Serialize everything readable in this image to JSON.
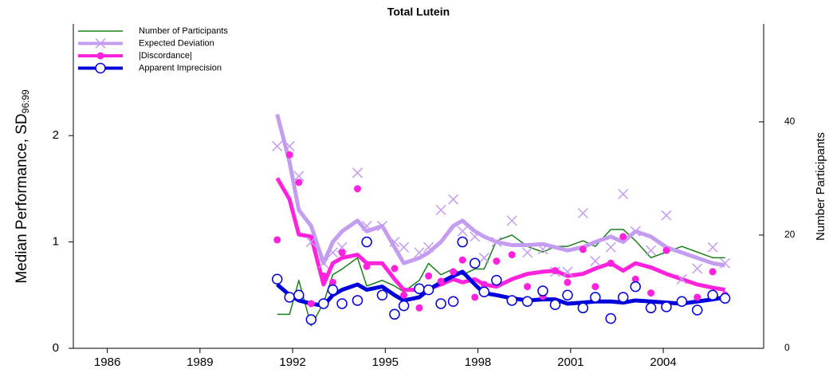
{
  "chart_data": {
    "type": "line",
    "title": "Total Lutein",
    "ylabel": "Median Performance, SD",
    "ylabel_sub": "96:99",
    "y2label": "Number Participants",
    "xlim": [
      1984.9,
      2007.25
    ],
    "xticks": [
      1986,
      1989,
      1992,
      1995,
      1998,
      2001,
      2004
    ],
    "ylim": [
      0,
      3.05
    ],
    "yticks": [
      0,
      1,
      2
    ],
    "y2lim": [
      0,
      57.3
    ],
    "y2ticks": [
      0,
      20,
      40
    ],
    "legend": "upper left",
    "x": [
      1991.5,
      1991.9,
      1992.2,
      1992.6,
      1993.0,
      1993.3,
      1993.6,
      1994.1,
      1994.4,
      1994.9,
      1995.3,
      1995.6,
      1996.1,
      1996.4,
      1996.8,
      1997.2,
      1997.5,
      1997.9,
      1998.2,
      1998.6,
      1999.1,
      1999.6,
      2000.1,
      2000.5,
      2000.9,
      2001.4,
      2001.8,
      2002.3,
      2002.7,
      2003.1,
      2003.6,
      2004.1,
      2004.6,
      2005.1,
      2005.6,
      2006.0
    ],
    "series": [
      {
        "name": "Number of Participants",
        "color": "#1a801a",
        "axis": "y2",
        "width": 1.5,
        "values": [
          6,
          6,
          12,
          4,
          8,
          13,
          14,
          16,
          11,
          12,
          11,
          10,
          12,
          15,
          13,
          14,
          13,
          14,
          14,
          19,
          20,
          18,
          17,
          18,
          18,
          19,
          18,
          21,
          21,
          19,
          16,
          17,
          18,
          17,
          16,
          16
        ]
      },
      {
        "name": "Expected Deviation",
        "color": "#c49cf0",
        "marker": "x",
        "width": 5,
        "values": [
          2.2,
          1.75,
          1.3,
          1.15,
          0.8,
          1.0,
          1.1,
          1.2,
          1.1,
          1.15,
          0.95,
          0.8,
          0.85,
          0.9,
          1.0,
          1.15,
          1.2,
          1.1,
          1.05,
          1.0,
          0.97,
          0.97,
          0.98,
          0.95,
          0.92,
          0.95,
          1.0,
          1.05,
          1.0,
          1.1,
          1.05,
          0.95,
          0.9,
          0.85,
          0.8,
          0.78
        ],
        "points": [
          1.9,
          1.9,
          1.62,
          1.0,
          0.8,
          0.9,
          0.95,
          1.65,
          1.15,
          1.15,
          1.0,
          0.95,
          0.9,
          0.95,
          1.3,
          1.4,
          1.1,
          1.05,
          0.85,
          1.0,
          1.2,
          0.9,
          0.93,
          0.72,
          0.72,
          1.27,
          0.82,
          0.95,
          1.45,
          1.1,
          0.92,
          1.25,
          0.65,
          0.75,
          0.95,
          0.8
        ]
      },
      {
        "name": "|Discordance|",
        "color": "#ff22dd",
        "marker": "dot",
        "width": 5,
        "values": [
          1.6,
          1.4,
          1.07,
          1.05,
          0.6,
          0.8,
          0.85,
          0.88,
          0.8,
          0.8,
          0.65,
          0.55,
          0.55,
          0.56,
          0.6,
          0.65,
          0.62,
          0.65,
          0.6,
          0.58,
          0.65,
          0.7,
          0.72,
          0.73,
          0.68,
          0.7,
          0.75,
          0.8,
          0.73,
          0.8,
          0.76,
          0.7,
          0.65,
          0.6,
          0.57,
          0.55
        ],
        "points": [
          1.02,
          1.82,
          1.56,
          0.42,
          0.68,
          0.62,
          0.9,
          1.5,
          0.77,
          0.5,
          0.75,
          0.5,
          0.38,
          0.68,
          0.63,
          0.72,
          0.83,
          0.48,
          0.6,
          0.82,
          0.88,
          0.58,
          0.49,
          0.73,
          0.62,
          0.93,
          0.58,
          0.8,
          1.05,
          0.65,
          0.52,
          0.92,
          0.45,
          0.48,
          0.72,
          0.5
        ]
      },
      {
        "name": "Apparent Imprecision",
        "color": "#0000dd",
        "marker": "circle",
        "width": 5,
        "values": [
          0.6,
          0.5,
          0.45,
          0.42,
          0.4,
          0.5,
          0.55,
          0.6,
          0.55,
          0.58,
          0.5,
          0.45,
          0.48,
          0.55,
          0.62,
          0.68,
          0.72,
          0.6,
          0.52,
          0.5,
          0.47,
          0.45,
          0.46,
          0.46,
          0.42,
          0.43,
          0.44,
          0.44,
          0.43,
          0.45,
          0.44,
          0.43,
          0.42,
          0.44,
          0.46,
          0.48
        ],
        "points": [
          0.65,
          0.48,
          0.5,
          0.27,
          0.42,
          0.55,
          0.42,
          0.45,
          1.0,
          0.5,
          0.32,
          0.4,
          0.56,
          0.55,
          0.42,
          0.44,
          1.0,
          0.8,
          0.53,
          0.64,
          0.45,
          0.44,
          0.54,
          0.41,
          0.5,
          0.38,
          0.48,
          0.28,
          0.48,
          0.58,
          0.38,
          0.39,
          0.44,
          0.36,
          0.5,
          0.47
        ]
      }
    ]
  }
}
